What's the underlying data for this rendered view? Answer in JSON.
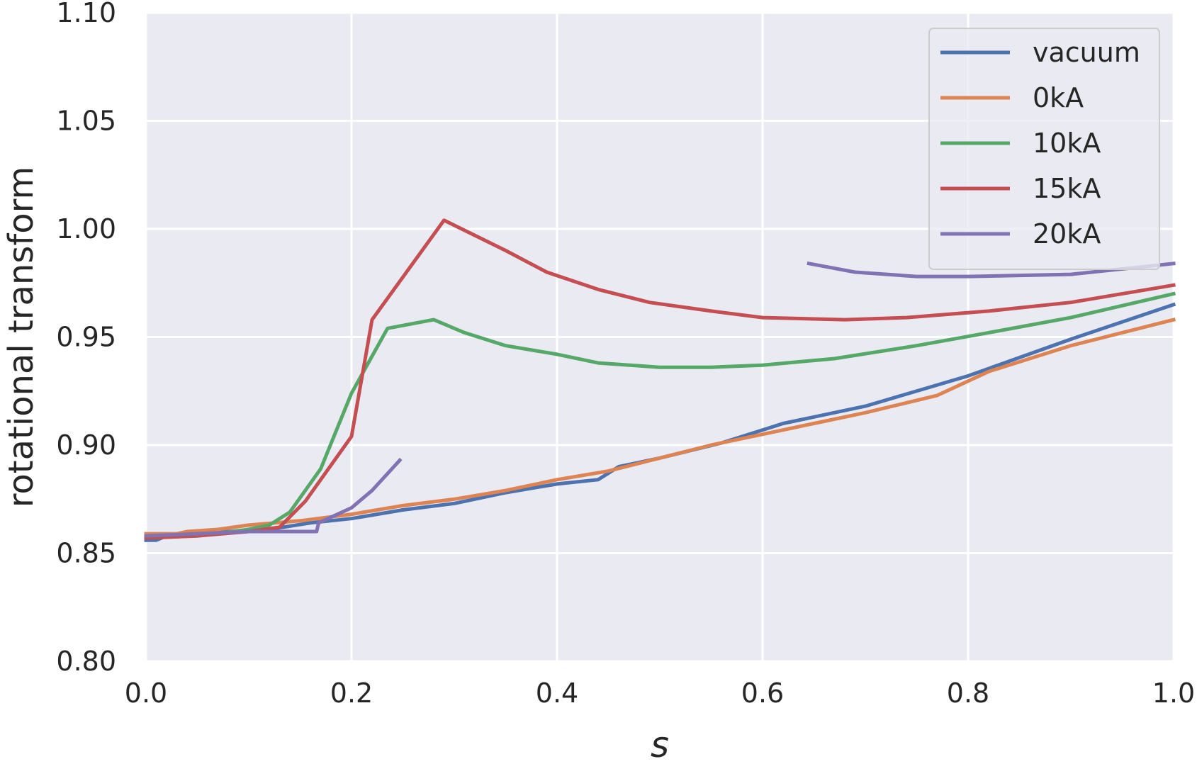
{
  "chart_data": {
    "type": "line",
    "title": "",
    "xlabel": "s",
    "ylabel": "rotational transform",
    "xlim": [
      0.0,
      1.0
    ],
    "ylim": [
      0.8,
      1.1
    ],
    "xticks": [
      "0.0",
      "0.2",
      "0.4",
      "0.6",
      "0.8",
      "1.0"
    ],
    "yticks": [
      "0.80",
      "0.85",
      "0.90",
      "0.95",
      "1.00",
      "1.05",
      "1.10"
    ],
    "grid": true,
    "legend_position": "top-right",
    "colors": {
      "background": "#eaeaf2",
      "grid": "#ffffff",
      "vacuum": "#4c72b0",
      "0kA": "#dd8452",
      "10kA": "#55a868",
      "15kA": "#c44e52",
      "20kA": "#8172b3"
    },
    "series": [
      {
        "name": "vacuum",
        "segments": [
          [
            [
              0.0,
              0.856
            ],
            [
              0.01,
              0.856
            ],
            [
              0.02,
              0.858
            ],
            [
              0.05,
              0.859
            ],
            [
              0.08,
              0.86
            ],
            [
              0.12,
              0.861
            ],
            [
              0.16,
              0.864
            ],
            [
              0.2,
              0.866
            ],
            [
              0.25,
              0.87
            ],
            [
              0.3,
              0.873
            ],
            [
              0.35,
              0.878
            ],
            [
              0.4,
              0.882
            ],
            [
              0.44,
              0.884
            ],
            [
              0.46,
              0.89
            ],
            [
              0.5,
              0.894
            ],
            [
              0.56,
              0.901
            ],
            [
              0.6,
              0.907
            ],
            [
              0.62,
              0.91
            ],
            [
              0.7,
              0.918
            ],
            [
              0.8,
              0.932
            ],
            [
              0.9,
              0.949
            ],
            [
              1.0,
              0.965
            ]
          ]
        ]
      },
      {
        "name": "0kA",
        "segments": [
          [
            [
              0.0,
              0.859
            ],
            [
              0.03,
              0.859
            ],
            [
              0.04,
              0.86
            ],
            [
              0.07,
              0.861
            ],
            [
              0.1,
              0.863
            ],
            [
              0.15,
              0.865
            ],
            [
              0.2,
              0.868
            ],
            [
              0.25,
              0.872
            ],
            [
              0.3,
              0.875
            ],
            [
              0.35,
              0.879
            ],
            [
              0.4,
              0.884
            ],
            [
              0.45,
              0.888
            ],
            [
              0.5,
              0.894
            ],
            [
              0.55,
              0.9
            ],
            [
              0.6,
              0.905
            ],
            [
              0.65,
              0.91
            ],
            [
              0.7,
              0.915
            ],
            [
              0.77,
              0.923
            ],
            [
              0.82,
              0.934
            ],
            [
              0.9,
              0.946
            ],
            [
              1.0,
              0.958
            ]
          ]
        ]
      },
      {
        "name": "10kA",
        "segments": [
          [
            [
              0.0,
              0.857
            ],
            [
              0.05,
              0.858
            ],
            [
              0.1,
              0.861
            ],
            [
              0.12,
              0.863
            ],
            [
              0.14,
              0.869
            ],
            [
              0.17,
              0.889
            ],
            [
              0.2,
              0.924
            ],
            [
              0.235,
              0.954
            ],
            [
              0.28,
              0.958
            ],
            [
              0.31,
              0.952
            ],
            [
              0.35,
              0.946
            ],
            [
              0.4,
              0.942
            ],
            [
              0.44,
              0.938
            ],
            [
              0.5,
              0.936
            ],
            [
              0.55,
              0.936
            ],
            [
              0.6,
              0.937
            ],
            [
              0.67,
              0.94
            ],
            [
              0.75,
              0.946
            ],
            [
              0.82,
              0.952
            ],
            [
              0.9,
              0.959
            ],
            [
              1.0,
              0.97
            ]
          ]
        ]
      },
      {
        "name": "15kA",
        "segments": [
          [
            [
              0.0,
              0.857
            ],
            [
              0.05,
              0.858
            ],
            [
              0.1,
              0.86
            ],
            [
              0.13,
              0.862
            ],
            [
              0.155,
              0.874
            ],
            [
              0.2,
              0.904
            ],
            [
              0.22,
              0.958
            ],
            [
              0.29,
              1.004
            ],
            [
              0.35,
              0.99
            ],
            [
              0.39,
              0.98
            ],
            [
              0.44,
              0.972
            ],
            [
              0.49,
              0.966
            ],
            [
              0.55,
              0.962
            ],
            [
              0.6,
              0.959
            ],
            [
              0.68,
              0.958
            ],
            [
              0.74,
              0.959
            ],
            [
              0.82,
              0.962
            ],
            [
              0.9,
              0.966
            ],
            [
              1.0,
              0.974
            ]
          ]
        ]
      },
      {
        "name": "20kA",
        "segments": [
          [
            [
              0.0,
              0.858
            ],
            [
              0.05,
              0.859
            ],
            [
              0.1,
              0.86
            ],
            [
              0.166,
              0.86
            ],
            [
              0.168,
              0.864
            ],
            [
              0.2,
              0.871
            ],
            [
              0.22,
              0.879
            ],
            [
              0.247,
              0.893
            ]
          ],
          [
            [
              0.645,
              0.984
            ],
            [
              0.69,
              0.98
            ],
            [
              0.75,
              0.978
            ],
            [
              0.8,
              0.978
            ],
            [
              0.9,
              0.979
            ],
            [
              1.0,
              0.984
            ]
          ]
        ]
      }
    ]
  }
}
